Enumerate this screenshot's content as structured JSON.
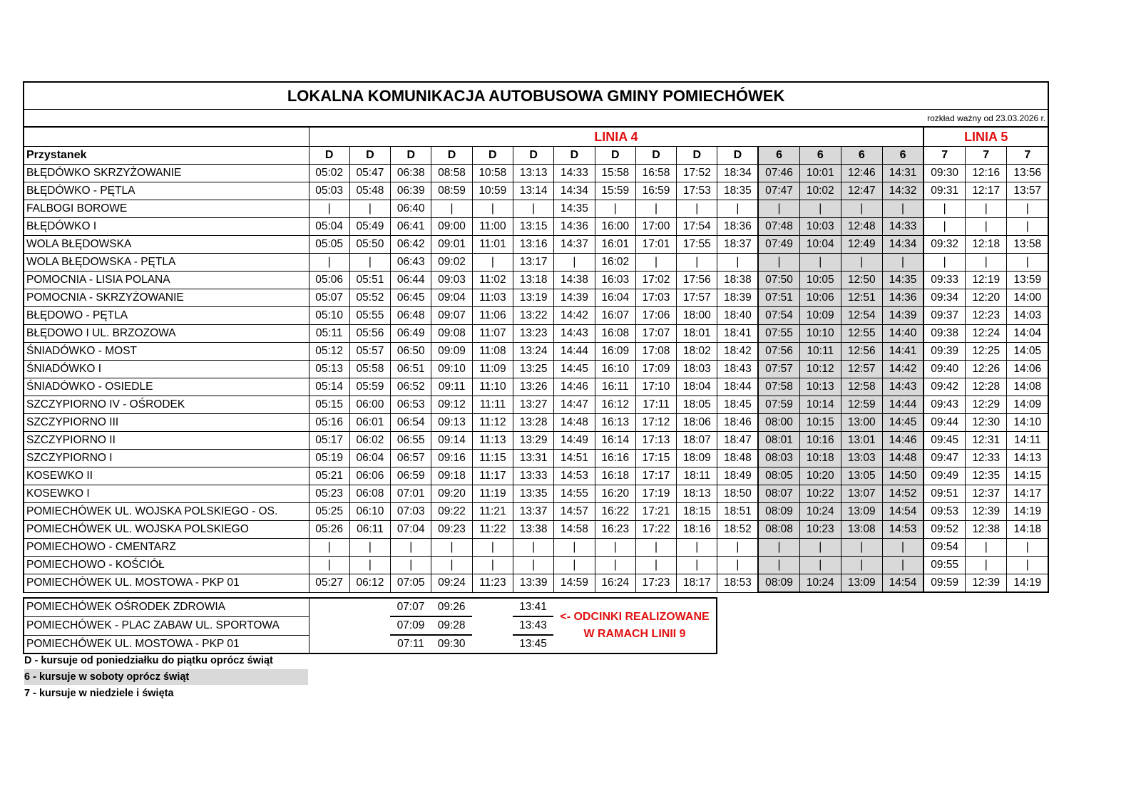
{
  "title": "LOKALNA KOMUNIKACJA AUTOBUSOWA GMINY POMIECHÓWEK",
  "validity": "rozkład ważny od 23.03.2026 r.",
  "lines": {
    "linia4": "LINIA 4",
    "linia5": "LINIA 5"
  },
  "stop_header": "Przystanek",
  "day_codes": [
    "D",
    "D",
    "D",
    "D",
    "D",
    "D",
    "D",
    "D",
    "D",
    "D",
    "D",
    "6",
    "6",
    "6",
    "6",
    "7",
    "7",
    "7"
  ],
  "colors": {
    "accent_red": "#e01010",
    "saturday_grey": "#d9d9d9"
  },
  "rows": [
    {
      "stop": "BŁĘDÓWKO SKRZYŻOWANIE",
      "times": [
        "05:02",
        "05:47",
        "06:38",
        "08:58",
        "10:58",
        "13:13",
        "14:33",
        "15:58",
        "16:58",
        "17:52",
        "18:34",
        "07:46",
        "10:01",
        "12:46",
        "14:31",
        "09:30",
        "12:16",
        "13:56"
      ]
    },
    {
      "stop": "BŁĘDÓWKO - PĘTLA",
      "times": [
        "05:03",
        "05:48",
        "06:39",
        "08:59",
        "10:59",
        "13:14",
        "14:34",
        "15:59",
        "16:59",
        "17:53",
        "18:35",
        "07:47",
        "10:02",
        "12:47",
        "14:32",
        "09:31",
        "12:17",
        "13:57"
      ]
    },
    {
      "stop": "FALBOGI BOROWE",
      "times": [
        "|",
        "|",
        "06:40",
        "|",
        "|",
        "|",
        "14:35",
        "|",
        "|",
        "|",
        "|",
        "|",
        "|",
        "|",
        "|",
        "|",
        "|",
        "|"
      ]
    },
    {
      "stop": "BŁĘDÓWKO I",
      "times": [
        "05:04",
        "05:49",
        "06:41",
        "09:00",
        "11:00",
        "13:15",
        "14:36",
        "16:00",
        "17:00",
        "17:54",
        "18:36",
        "07:48",
        "10:03",
        "12:48",
        "14:33",
        "|",
        "|",
        "|"
      ]
    },
    {
      "stop": "WOLA BŁĘDOWSKA",
      "times": [
        "05:05",
        "05:50",
        "06:42",
        "09:01",
        "11:01",
        "13:16",
        "14:37",
        "16:01",
        "17:01",
        "17:55",
        "18:37",
        "07:49",
        "10:04",
        "12:49",
        "14:34",
        "09:32",
        "12:18",
        "13:58"
      ]
    },
    {
      "stop": "WOLA BŁĘDOWSKA - PĘTLA",
      "times": [
        "|",
        "|",
        "06:43",
        "09:02",
        "|",
        "13:17",
        "|",
        "16:02",
        "|",
        "|",
        "|",
        "|",
        "|",
        "|",
        "|",
        "|",
        "|",
        "|"
      ]
    },
    {
      "stop": "POMOCNIA - LISIA POLANA",
      "times": [
        "05:06",
        "05:51",
        "06:44",
        "09:03",
        "11:02",
        "13:18",
        "14:38",
        "16:03",
        "17:02",
        "17:56",
        "18:38",
        "07:50",
        "10:05",
        "12:50",
        "14:35",
        "09:33",
        "12:19",
        "13:59"
      ]
    },
    {
      "stop": "POMOCNIA - SKRZYŻOWANIE",
      "times": [
        "05:07",
        "05:52",
        "06:45",
        "09:04",
        "11:03",
        "13:19",
        "14:39",
        "16:04",
        "17:03",
        "17:57",
        "18:39",
        "07:51",
        "10:06",
        "12:51",
        "14:36",
        "09:34",
        "12:20",
        "14:00"
      ]
    },
    {
      "stop": "BŁĘDOWO - PĘTLA",
      "times": [
        "05:10",
        "05:55",
        "06:48",
        "09:07",
        "11:06",
        "13:22",
        "14:42",
        "16:07",
        "17:06",
        "18:00",
        "18:40",
        "07:54",
        "10:09",
        "12:54",
        "14:39",
        "09:37",
        "12:23",
        "14:03"
      ]
    },
    {
      "stop": "BŁĘDOWO I UL. BRZOZOWA",
      "times": [
        "05:11",
        "05:56",
        "06:49",
        "09:08",
        "11:07",
        "13:23",
        "14:43",
        "16:08",
        "17:07",
        "18:01",
        "18:41",
        "07:55",
        "10:10",
        "12:55",
        "14:40",
        "09:38",
        "12:24",
        "14:04"
      ]
    },
    {
      "stop": "ŚNIADÓWKO - MOST",
      "times": [
        "05:12",
        "05:57",
        "06:50",
        "09:09",
        "11:08",
        "13:24",
        "14:44",
        "16:09",
        "17:08",
        "18:02",
        "18:42",
        "07:56",
        "10:11",
        "12:56",
        "14:41",
        "09:39",
        "12:25",
        "14:05"
      ]
    },
    {
      "stop": "ŚNIADÓWKO I",
      "times": [
        "05:13",
        "05:58",
        "06:51",
        "09:10",
        "11:09",
        "13:25",
        "14:45",
        "16:10",
        "17:09",
        "18:03",
        "18:43",
        "07:57",
        "10:12",
        "12:57",
        "14:42",
        "09:40",
        "12:26",
        "14:06"
      ]
    },
    {
      "stop": "ŚNIADÓWKO - OSIEDLE",
      "times": [
        "05:14",
        "05:59",
        "06:52",
        "09:11",
        "11:10",
        "13:26",
        "14:46",
        "16:11",
        "17:10",
        "18:04",
        "18:44",
        "07:58",
        "10:13",
        "12:58",
        "14:43",
        "09:42",
        "12:28",
        "14:08"
      ]
    },
    {
      "stop": "SZCZYPIORNO IV - OŚRODEK",
      "times": [
        "05:15",
        "06:00",
        "06:53",
        "09:12",
        "11:11",
        "13:27",
        "14:47",
        "16:12",
        "17:11",
        "18:05",
        "18:45",
        "07:59",
        "10:14",
        "12:59",
        "14:44",
        "09:43",
        "12:29",
        "14:09"
      ]
    },
    {
      "stop": "SZCZYPIORNO III",
      "times": [
        "05:16",
        "06:01",
        "06:54",
        "09:13",
        "11:12",
        "13:28",
        "14:48",
        "16:13",
        "17:12",
        "18:06",
        "18:46",
        "08:00",
        "10:15",
        "13:00",
        "14:45",
        "09:44",
        "12:30",
        "14:10"
      ]
    },
    {
      "stop": "SZCZYPIORNO II",
      "times": [
        "05:17",
        "06:02",
        "06:55",
        "09:14",
        "11:13",
        "13:29",
        "14:49",
        "16:14",
        "17:13",
        "18:07",
        "18:47",
        "08:01",
        "10:16",
        "13:01",
        "14:46",
        "09:45",
        "12:31",
        "14:11"
      ]
    },
    {
      "stop": "SZCZYPIORNO I",
      "times": [
        "05:19",
        "06:04",
        "06:57",
        "09:16",
        "11:15",
        "13:31",
        "14:51",
        "16:16",
        "17:15",
        "18:09",
        "18:48",
        "08:03",
        "10:18",
        "13:03",
        "14:48",
        "09:47",
        "12:33",
        "14:13"
      ]
    },
    {
      "stop": "KOSEWKO II",
      "times": [
        "05:21",
        "06:06",
        "06:59",
        "09:18",
        "11:17",
        "13:33",
        "14:53",
        "16:18",
        "17:17",
        "18:11",
        "18:49",
        "08:05",
        "10:20",
        "13:05",
        "14:50",
        "09:49",
        "12:35",
        "14:15"
      ]
    },
    {
      "stop": "KOSEWKO I",
      "times": [
        "05:23",
        "06:08",
        "07:01",
        "09:20",
        "11:19",
        "13:35",
        "14:55",
        "16:20",
        "17:19",
        "18:13",
        "18:50",
        "08:07",
        "10:22",
        "13:07",
        "14:52",
        "09:51",
        "12:37",
        "14:17"
      ]
    },
    {
      "stop": "POMIECHÓWEK UL. WOJSKA POLSKIEGO - OS.",
      "times": [
        "05:25",
        "06:10",
        "07:03",
        "09:22",
        "11:21",
        "13:37",
        "14:57",
        "16:22",
        "17:21",
        "18:15",
        "18:51",
        "08:09",
        "10:24",
        "13:09",
        "14:54",
        "09:53",
        "12:39",
        "14:19"
      ]
    },
    {
      "stop": "POMIECHÓWEK UL. WOJSKA POLSKIEGO",
      "times": [
        "05:26",
        "06:11",
        "07:04",
        "09:23",
        "11:22",
        "13:38",
        "14:58",
        "16:23",
        "17:22",
        "18:16",
        "18:52",
        "08:08",
        "10:23",
        "13:08",
        "14:53",
        "09:52",
        "12:38",
        "14:18"
      ]
    },
    {
      "stop": "POMIECHOWO - CMENTARZ",
      "times": [
        "|",
        "|",
        "|",
        "|",
        "|",
        "|",
        "|",
        "|",
        "|",
        "|",
        "|",
        "|",
        "|",
        "|",
        "|",
        "09:54",
        "|",
        "|"
      ]
    },
    {
      "stop": "POMIECHOWO - KOŚCIÓŁ",
      "times": [
        "|",
        "|",
        "|",
        "|",
        "|",
        "|",
        "|",
        "|",
        "|",
        "|",
        "|",
        "|",
        "|",
        "|",
        "|",
        "09:55",
        "|",
        "|"
      ]
    },
    {
      "stop": "POMIECHÓWEK UL. MOSTOWA - PKP 01",
      "times": [
        "05:27",
        "06:12",
        "07:05",
        "09:24",
        "11:23",
        "13:39",
        "14:59",
        "16:24",
        "17:23",
        "18:17",
        "18:53",
        "08:09",
        "10:24",
        "13:09",
        "14:54",
        "09:59",
        "12:39",
        "14:19"
      ]
    }
  ],
  "extension": {
    "rows": [
      {
        "stop": "POMIECHÓWEK  OŚRODEK ZDROWIA",
        "times": [
          "",
          "",
          "07:07",
          "09:26",
          "",
          "13:41"
        ]
      },
      {
        "stop": "POMIECHÓWEK - PLAC ZABAW UL. SPORTOWA",
        "times": [
          "",
          "",
          "07:09",
          "09:28",
          "",
          "13:43"
        ]
      },
      {
        "stop": "POMIECHÓWEK UL. MOSTOWA - PKP 01",
        "times": [
          "",
          "",
          "07:11",
          "09:30",
          "",
          "13:45"
        ]
      }
    ],
    "note_line1": "<- ODCINKI REALIZOWANE",
    "note_line2": "W RAMACH LINII 9"
  },
  "legend": [
    "D - kursuje od poniedziałku do piątku oprócz świąt",
    "6 - kursuje w soboty oprócz świąt",
    "7 - kursuje w niedziele i święta"
  ]
}
